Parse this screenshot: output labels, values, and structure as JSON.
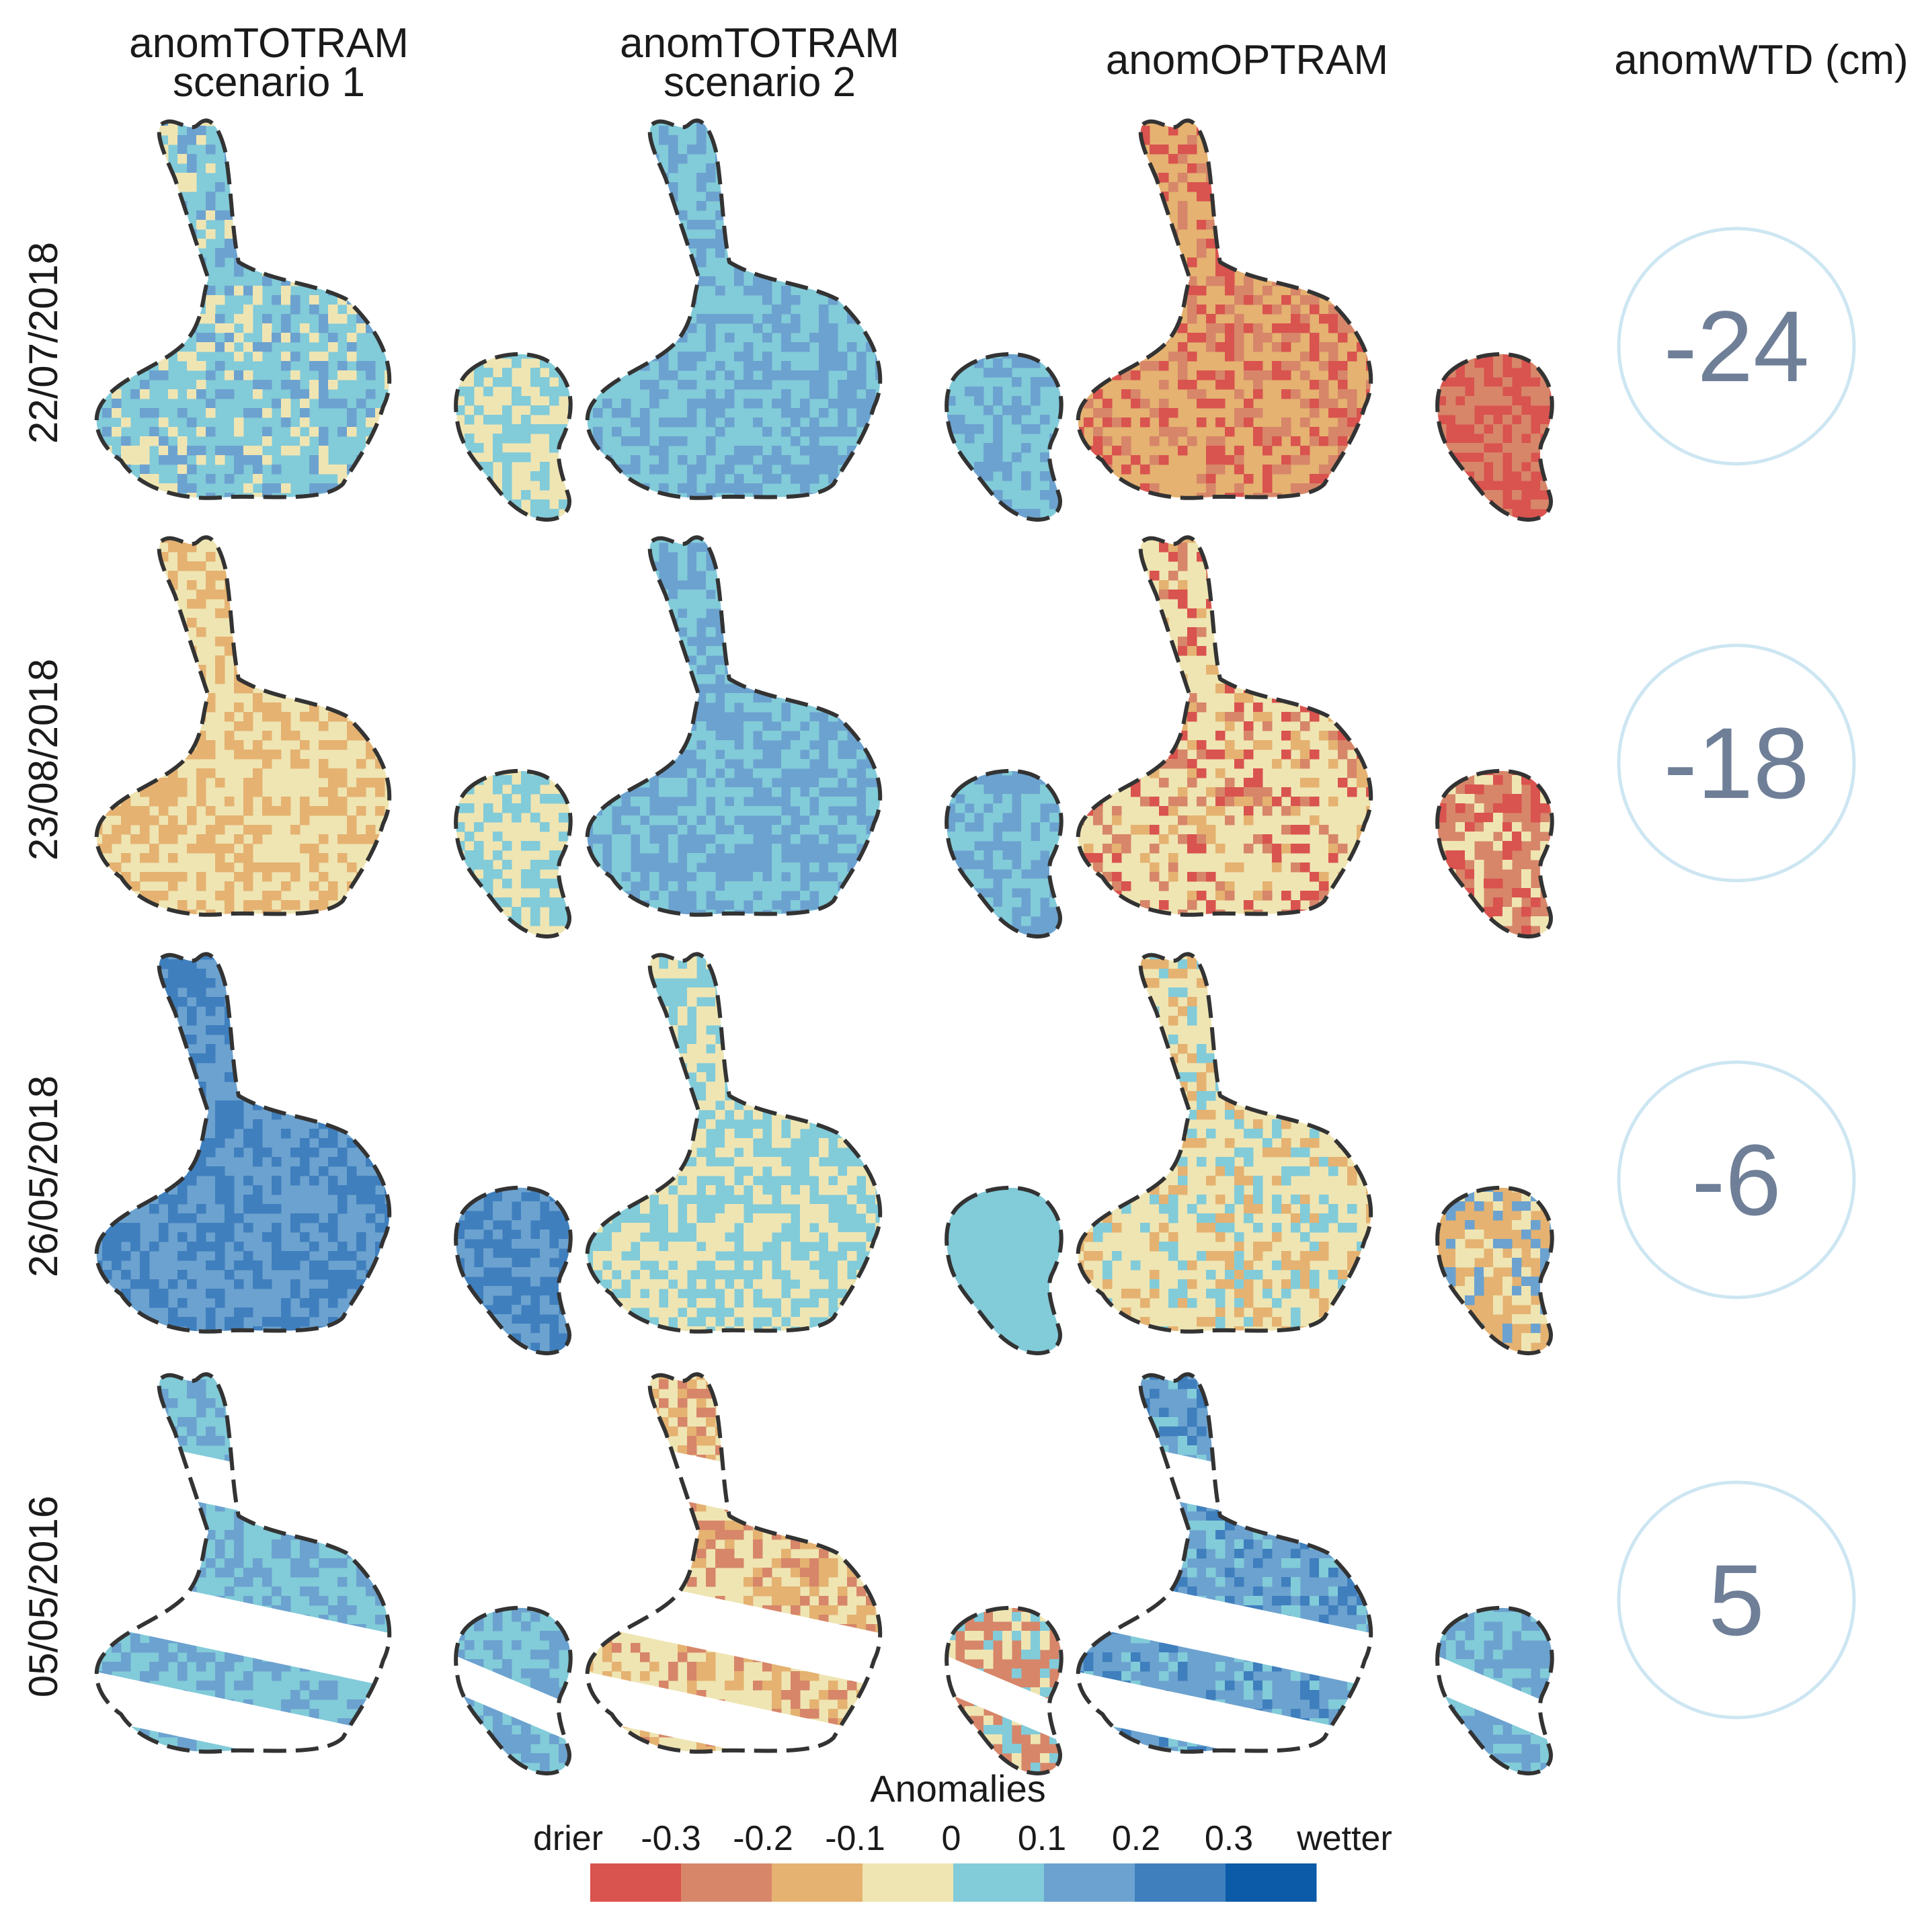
{
  "columns": [
    "anomTOTRAM\nscenario 1",
    "anomTOTRAM\nscenario 2",
    "anomOPTRAM",
    "anomWTD (cm)"
  ],
  "rows": [
    {
      "date": "22/07/2018",
      "wtd": "-24",
      "maps": [
        [
          "#82cbd9",
          "#efe5b3",
          "#6ca2cf"
        ],
        [
          "#82cbd9",
          "#6ca2cf"
        ],
        [
          "#e5b271",
          "#d78669",
          "#d9534f"
        ]
      ],
      "small": [
        [
          "#efe5b3",
          "#82cbd9"
        ],
        [
          "#82cbd9",
          "#6ca2cf"
        ],
        [
          "#d9534f",
          "#d78669"
        ]
      ],
      "gaps": false
    },
    {
      "date": "23/08/2018",
      "wtd": "-18",
      "maps": [
        [
          "#efe5b3",
          "#e5b271"
        ],
        [
          "#6ca2cf",
          "#82cbd9"
        ],
        [
          "#efe5b3",
          "#e5b271",
          "#d78669",
          "#d9534f"
        ]
      ],
      "small": [
        [
          "#efe5b3",
          "#82cbd9"
        ],
        [
          "#6ca2cf",
          "#82cbd9"
        ],
        [
          "#d78669",
          "#d9534f",
          "#efe5b3"
        ]
      ],
      "gaps": false
    },
    {
      "date": "26/05/2018",
      "wtd": "-6",
      "maps": [
        [
          "#6ca2cf",
          "#3f7fbe"
        ],
        [
          "#82cbd9",
          "#efe5b3"
        ],
        [
          "#efe5b3",
          "#e5b271",
          "#82cbd9"
        ]
      ],
      "small": [
        [
          "#3f7fbe",
          "#6ca2cf"
        ],
        [
          "#82cbd9",
          "#82cbd9"
        ],
        [
          "#e5b271",
          "#efe5b3",
          "#6ca2cf"
        ]
      ],
      "gaps": false
    },
    {
      "date": "05/05/2016",
      "wtd": "5",
      "maps": [
        [
          "#82cbd9",
          "#6ca2cf"
        ],
        [
          "#efe5b3",
          "#e5b271",
          "#d78669"
        ],
        [
          "#6ca2cf",
          "#82cbd9",
          "#3f7fbe"
        ]
      ],
      "small": [
        [
          "#82cbd9",
          "#6ca2cf"
        ],
        [
          "#d78669",
          "#efe5b3",
          "#82cbd9"
        ],
        [
          "#6ca2cf",
          "#82cbd9"
        ]
      ],
      "gaps": true
    }
  ],
  "legend": {
    "title": "Anomalies",
    "ticks": [
      "drier",
      "-0.3",
      "-0.2",
      "-0.1",
      "0",
      "0.1",
      "0.2",
      "0.3",
      "wetter"
    ],
    "colors": [
      "#d9534f",
      "#d78669",
      "#e5b271",
      "#efe5b3",
      "#82cbd9",
      "#6ca2cf",
      "#3f7fbe",
      "#0b5ba8"
    ]
  },
  "colors": {
    "circle": "#cde6f2",
    "wtd_text": "#6f7f97",
    "outline": "#333333"
  }
}
